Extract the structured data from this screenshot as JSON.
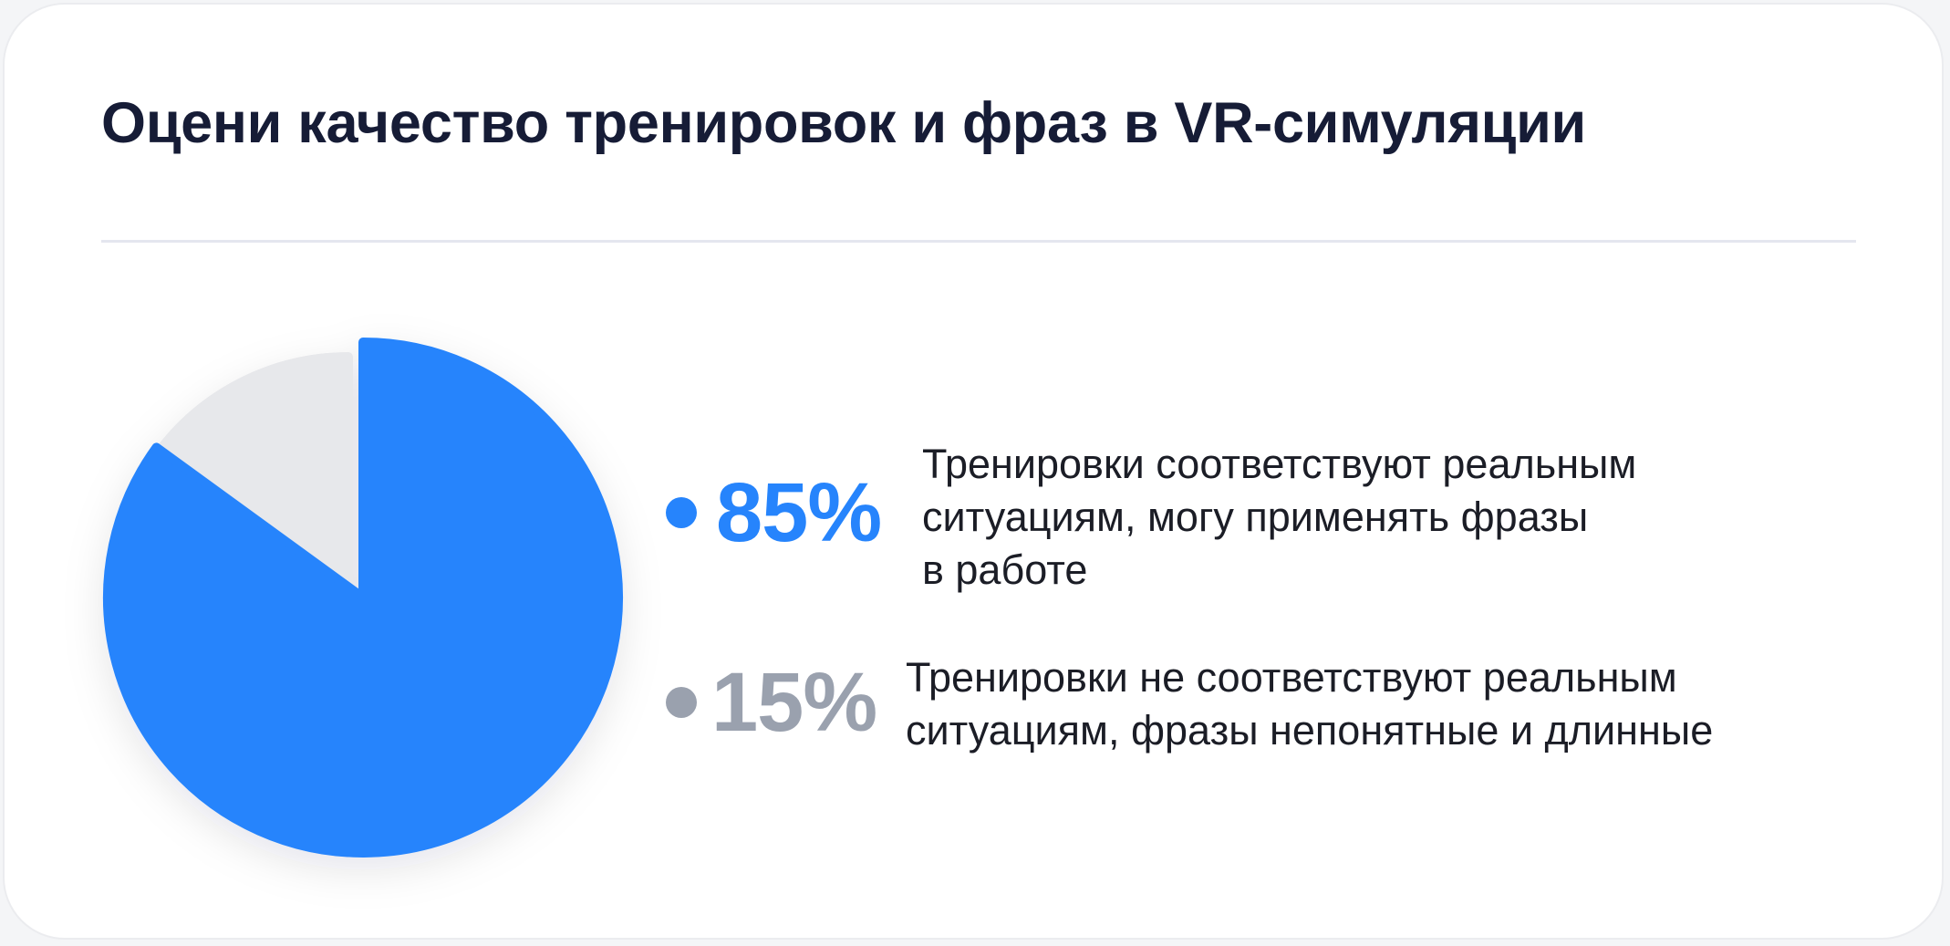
{
  "title": "Оцени качество тренировок и фраз в VR-симуляции",
  "colors": {
    "positive": "#2684fc",
    "negative_slice": "#e7e8eb",
    "negative_text": "#9aa1ae",
    "title": "#161c36"
  },
  "legend": [
    {
      "percent_label": "85%",
      "lines": [
        "Тренировки соответствуют реальным",
        "ситуациям, могу применять фразы",
        "в работе"
      ]
    },
    {
      "percent_label": "15%",
      "lines": [
        "Тренировки не соответствуют реальным",
        "ситуациям, фразы непонятные и длинные"
      ]
    }
  ],
  "chart_data": {
    "type": "pie",
    "title": "Оцени качество тренировок и фраз в VR-симуляции",
    "slices": [
      {
        "label": "Тренировки соответствуют реальным ситуациям, могу применять фразы в работе",
        "value": 85,
        "color": "#2684fc"
      },
      {
        "label": "Тренировки не соответствуют реальным ситуациям, фразы непонятные и длинные",
        "value": 15,
        "color": "#e7e8eb"
      }
    ],
    "legend_position": "right"
  }
}
